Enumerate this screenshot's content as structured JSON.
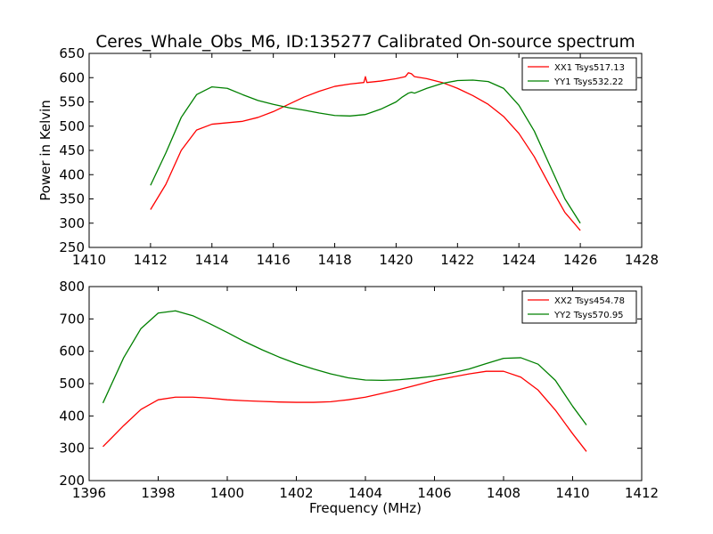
{
  "chart_data": [
    {
      "type": "line",
      "title": "Ceres_Whale_Obs_M6, ID:135277 Calibrated On-source spectrum",
      "xlabel": "",
      "ylabel": "Power in Kelvin",
      "xlim": [
        1410,
        1428
      ],
      "ylim": [
        250,
        650
      ],
      "xticks": [
        "1410",
        "1412",
        "1414",
        "1416",
        "1418",
        "1420",
        "1422",
        "1424",
        "1426",
        "1428"
      ],
      "yticks": [
        "250",
        "300",
        "350",
        "400",
        "450",
        "500",
        "550",
        "600",
        "650"
      ],
      "legend_position": "top-right",
      "series": [
        {
          "name": "XX1 Tsys517.13",
          "color": "#ff0000",
          "x": [
            1412.0,
            1412.5,
            1413.0,
            1413.5,
            1414.0,
            1414.5,
            1415.0,
            1415.5,
            1416.0,
            1416.5,
            1417.0,
            1417.5,
            1418.0,
            1418.5,
            1418.95,
            1419.0,
            1419.05,
            1419.5,
            1420.0,
            1420.3,
            1420.4,
            1420.5,
            1420.6,
            1420.8,
            1421.0,
            1421.5,
            1422.0,
            1422.5,
            1423.0,
            1423.5,
            1424.0,
            1424.5,
            1425.0,
            1425.5,
            1426.0
          ],
          "y": [
            328,
            380,
            450,
            492,
            504,
            507,
            510,
            518,
            530,
            545,
            560,
            572,
            582,
            587,
            590,
            602,
            590,
            593,
            598,
            602,
            610,
            608,
            602,
            600,
            598,
            590,
            578,
            563,
            545,
            520,
            485,
            437,
            378,
            322,
            285
          ]
        },
        {
          "name": "YY1 Tsys532.22",
          "color": "#008000",
          "x": [
            1412.0,
            1412.5,
            1413.0,
            1413.5,
            1414.0,
            1414.5,
            1415.0,
            1415.5,
            1416.0,
            1416.5,
            1417.0,
            1417.5,
            1418.0,
            1418.5,
            1419.0,
            1419.5,
            1420.0,
            1420.2,
            1420.4,
            1420.5,
            1420.6,
            1421.0,
            1421.5,
            1422.0,
            1422.5,
            1423.0,
            1423.5,
            1424.0,
            1424.5,
            1425.0,
            1425.5,
            1426.0
          ],
          "y": [
            378,
            445,
            518,
            565,
            581,
            578,
            565,
            553,
            545,
            538,
            533,
            527,
            522,
            521,
            524,
            535,
            550,
            560,
            568,
            570,
            568,
            578,
            588,
            594,
            595,
            592,
            578,
            543,
            490,
            420,
            350,
            300
          ]
        }
      ]
    },
    {
      "type": "line",
      "title": "",
      "xlabel": "Frequency (MHz)",
      "ylabel": "",
      "xlim": [
        1396,
        1412
      ],
      "ylim": [
        200,
        800
      ],
      "xticks": [
        "1396",
        "1398",
        "1400",
        "1402",
        "1404",
        "1406",
        "1408",
        "1410",
        "1412"
      ],
      "yticks": [
        "200",
        "300",
        "400",
        "500",
        "600",
        "700",
        "800"
      ],
      "legend_position": "top-right",
      "series": [
        {
          "name": "XX2 Tsys454.78",
          "color": "#ff0000",
          "x": [
            1396.4,
            1397.0,
            1397.5,
            1398.0,
            1398.5,
            1399.0,
            1399.5,
            1400.0,
            1400.5,
            1401.0,
            1401.5,
            1402.0,
            1402.5,
            1403.0,
            1403.5,
            1404.0,
            1404.5,
            1405.0,
            1405.5,
            1406.0,
            1406.5,
            1407.0,
            1407.5,
            1408.0,
            1408.5,
            1409.0,
            1409.5,
            1410.0,
            1410.4
          ],
          "y": [
            305,
            370,
            420,
            450,
            458,
            458,
            455,
            450,
            447,
            445,
            443,
            442,
            442,
            444,
            450,
            458,
            470,
            482,
            496,
            510,
            520,
            530,
            538,
            538,
            520,
            480,
            418,
            345,
            290
          ]
        },
        {
          "name": "YY2 Tsys570.95",
          "color": "#008000",
          "x": [
            1396.4,
            1397.0,
            1397.5,
            1398.0,
            1398.5,
            1399.0,
            1399.5,
            1400.0,
            1400.5,
            1401.0,
            1401.5,
            1402.0,
            1402.5,
            1403.0,
            1403.5,
            1404.0,
            1404.5,
            1405.0,
            1405.5,
            1406.0,
            1406.5,
            1407.0,
            1407.5,
            1408.0,
            1408.5,
            1409.0,
            1409.5,
            1410.0,
            1410.4
          ],
          "y": [
            440,
            580,
            670,
            718,
            725,
            710,
            685,
            658,
            630,
            605,
            582,
            562,
            545,
            530,
            518,
            511,
            510,
            512,
            517,
            523,
            533,
            545,
            562,
            578,
            580,
            560,
            510,
            430,
            372
          ]
        }
      ]
    }
  ]
}
